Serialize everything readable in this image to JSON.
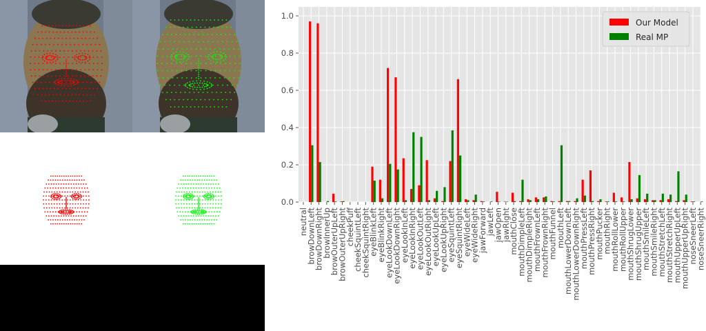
{
  "chart_data": {
    "type": "bar",
    "ylim": [
      0,
      1.0
    ],
    "yticks": [
      "0.0",
      "0.2",
      "0.4",
      "0.6",
      "0.8",
      "1.0"
    ],
    "grid": true,
    "legend_position": "top-right",
    "categories": [
      "neutral",
      "browDownLeft",
      "browDownRight",
      "browInnerUp",
      "browOuterUpLeft",
      "browOuterUpRight",
      "cheekPuff",
      "cheekSquintLeft",
      "cheekSquintRight",
      "eyeBlinkLeft",
      "eyeBlinkRight",
      "eyeLookDownLeft",
      "eyeLookDownRight",
      "eyeLookInLeft",
      "eyeLookInRight",
      "eyeLookOutLeft",
      "eyeLookOutRight",
      "eyeLookUpLeft",
      "eyeLookUpRight",
      "eyeSquintLeft",
      "eyeSquintRight",
      "eyeWideLeft",
      "eyeWideRight",
      "jawForward",
      "jawLeft",
      "jawOpen",
      "jawRight",
      "mouthClose",
      "mouthDimpleLeft",
      "mouthDimpleRight",
      "mouthFrownLeft",
      "mouthFrownRight",
      "mouthFunnel",
      "mouthLeft",
      "mouthLowerDownLeft",
      "mouthLowerDownRight",
      "mouthPressLeft",
      "mouthPressRight",
      "mouthPucker",
      "mouthRight",
      "mouthRollLower",
      "mouthRollUpper",
      "mouthShrugLower",
      "mouthShrugUpper",
      "mouthSmileLeft",
      "mouthSmileRight",
      "mouthStretchLeft",
      "mouthStretchRight",
      "mouthUpperUpLeft",
      "mouthUpperUpRight",
      "noseSneerLeft",
      "noseSneerRight"
    ],
    "series": [
      {
        "name": "Our Model",
        "color": "#ff0000",
        "values": [
          0.0,
          0.97,
          0.96,
          0.0,
          0.045,
          0.003,
          0.0,
          0.0,
          0.0,
          0.19,
          0.12,
          0.72,
          0.67,
          0.235,
          0.07,
          0.09,
          0.225,
          0.02,
          0.005,
          0.22,
          0.66,
          0.015,
          0.01,
          0.005,
          0.0,
          0.055,
          0.002,
          0.05,
          0.005,
          0.015,
          0.025,
          0.025,
          0.005,
          0.005,
          0.005,
          0.005,
          0.12,
          0.17,
          0.005,
          0.003,
          0.05,
          0.025,
          0.215,
          0.02,
          0.015,
          0.01,
          0.01,
          0.015,
          0.005,
          0.01,
          0.003,
          0.0
        ]
      },
      {
        "name": "Real MP",
        "color": "#008000",
        "values": [
          0.0,
          0.305,
          0.215,
          0.005,
          0.003,
          0.005,
          0.0,
          0.0,
          0.0,
          0.115,
          0.02,
          0.205,
          0.175,
          0.01,
          0.375,
          0.35,
          0.01,
          0.06,
          0.08,
          0.385,
          0.25,
          0.01,
          0.04,
          0.003,
          0.003,
          0.002,
          0.002,
          0.005,
          0.12,
          0.01,
          0.015,
          0.03,
          0.003,
          0.305,
          0.005,
          0.02,
          0.035,
          0.005,
          0.015,
          0.003,
          0.003,
          0.003,
          0.015,
          0.145,
          0.045,
          0.01,
          0.045,
          0.04,
          0.165,
          0.04,
          0.003,
          0.003
        ]
      }
    ]
  }
}
